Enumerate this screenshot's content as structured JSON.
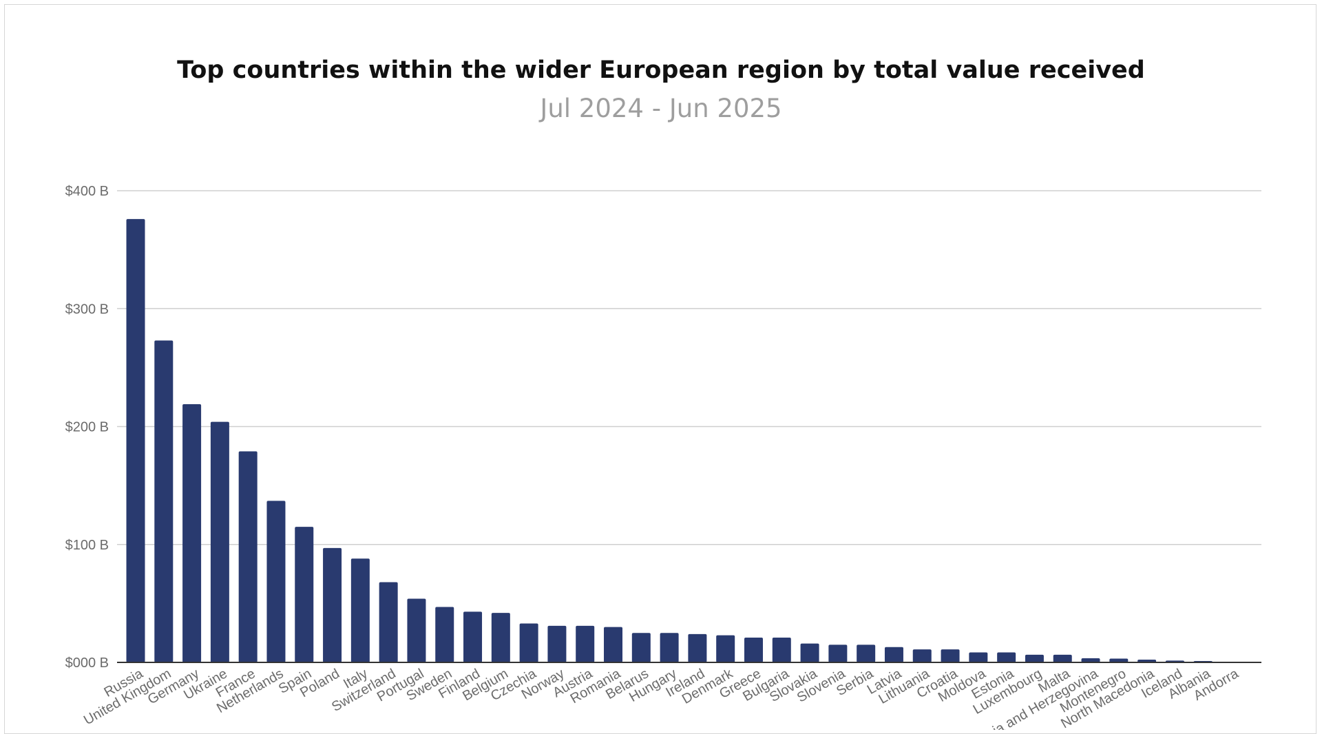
{
  "chart_data": {
    "type": "bar",
    "title": "Top countries within the wider European region by total value received",
    "subtitle": "Jul 2024 - Jun 2025",
    "xlabel": "",
    "ylabel": "",
    "ylim": [
      0,
      400
    ],
    "y_ticks": [
      {
        "value": 0,
        "label": "$000 B"
      },
      {
        "value": 100,
        "label": "$100 B"
      },
      {
        "value": 200,
        "label": "$200 B"
      },
      {
        "value": 300,
        "label": "$300 B"
      },
      {
        "value": 400,
        "label": "$400 B"
      }
    ],
    "grid": true,
    "legend": "none",
    "bar_color": "#293a6f",
    "categories": [
      "Russia",
      "United Kingdom",
      "Germany",
      "Ukraine",
      "France",
      "Netherlands",
      "Spain",
      "Poland",
      "Italy",
      "Switzerland",
      "Portugal",
      "Sweden",
      "Finland",
      "Belgium",
      "Czechia",
      "Norway",
      "Austria",
      "Romania",
      "Belarus",
      "Hungary",
      "Ireland",
      "Denmark",
      "Greece",
      "Bulgaria",
      "Slovakia",
      "Slovenia",
      "Serbia",
      "Latvia",
      "Lithuania",
      "Croatia",
      "Moldova",
      "Estonia",
      "Luxembourg",
      "Malta",
      "Bosnia and Herzegovina",
      "Montenegro",
      "North Macedonia",
      "Iceland",
      "Albania",
      "Andorra"
    ],
    "values": [
      376,
      273,
      219,
      204,
      179,
      137,
      115,
      97,
      88,
      68,
      54,
      47,
      43,
      42,
      33,
      31,
      31,
      30,
      25,
      25,
      24,
      23,
      21,
      21,
      16,
      15,
      15,
      13,
      11,
      11,
      8.5,
      8.5,
      6.5,
      6.5,
      3.5,
      3.2,
      2.3,
      1.5,
      1.2,
      0.3
    ]
  }
}
